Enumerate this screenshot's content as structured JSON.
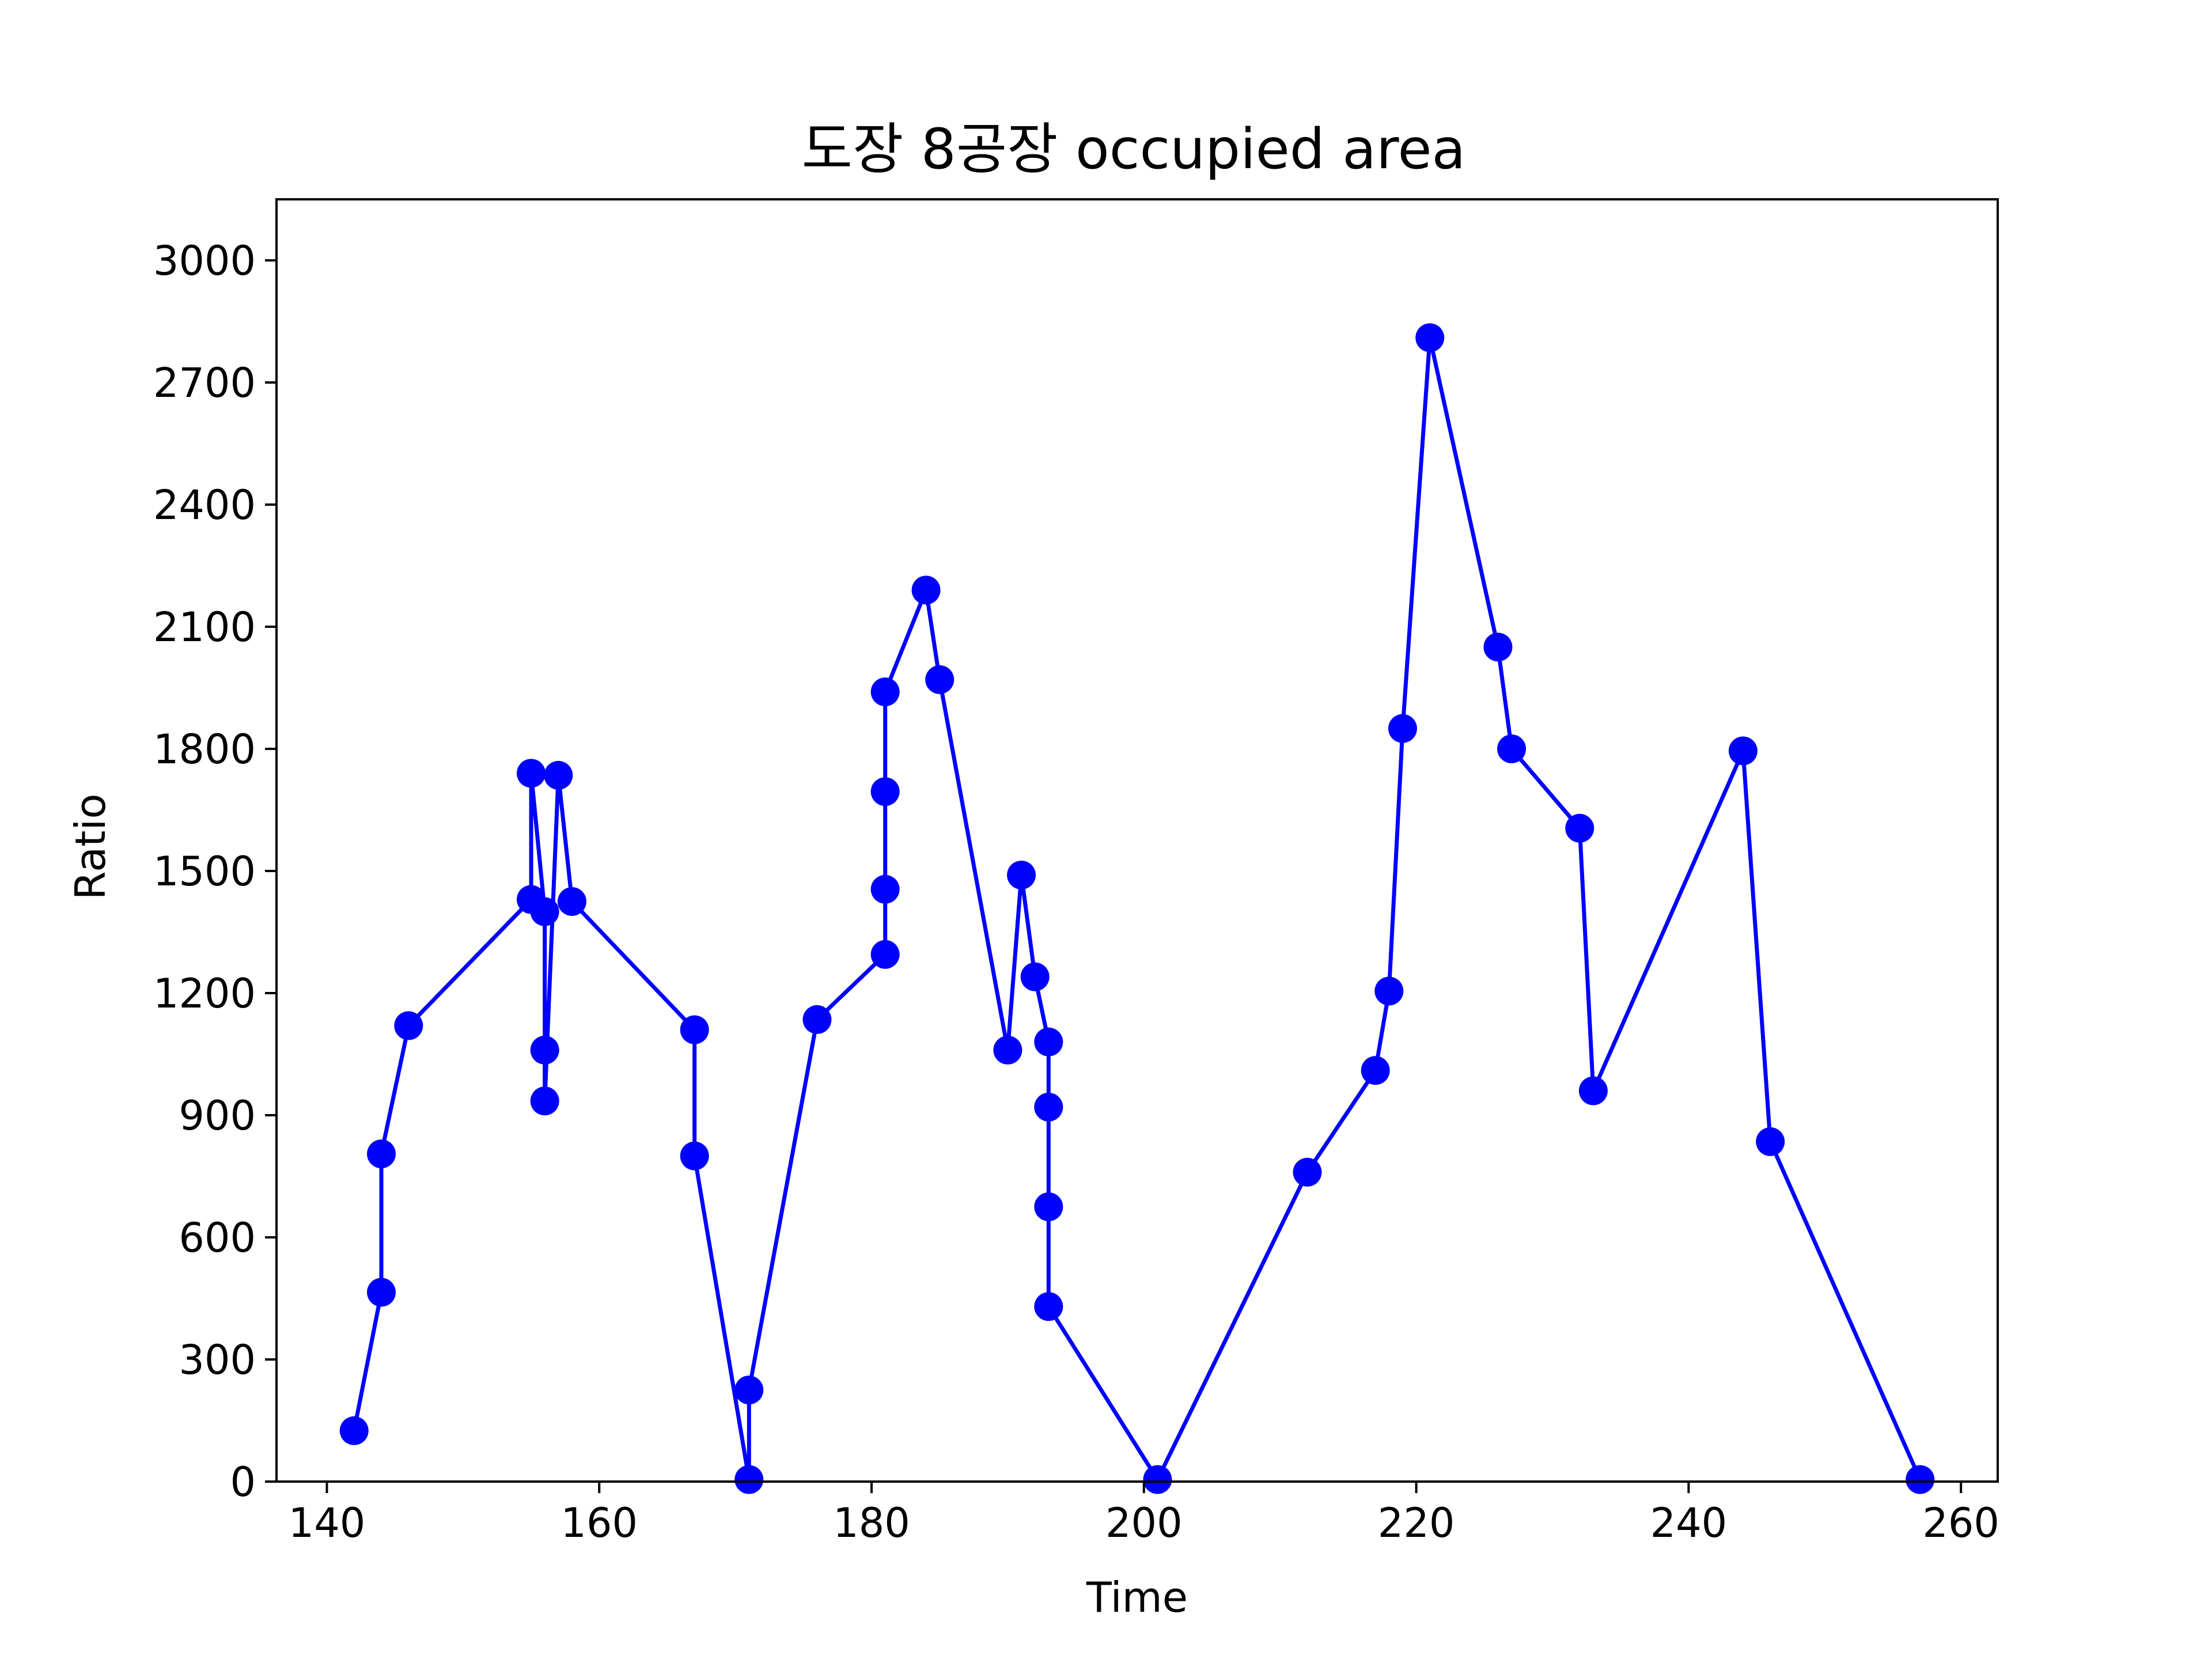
{
  "chart_data": {
    "type": "line",
    "title": "도장 8공장 occupied area",
    "xlabel": "Time",
    "ylabel": "Ratio",
    "xlim": [
      136.3,
      262.7
    ],
    "ylim": [
      0,
      3150
    ],
    "xticks": [
      140,
      160,
      180,
      200,
      220,
      240,
      260
    ],
    "yticks": [
      0,
      300,
      600,
      900,
      1200,
      1500,
      1800,
      2100,
      2400,
      2700,
      3000
    ],
    "grid": false,
    "colors": {
      "series": "#0000ff",
      "axes": "#000000",
      "background": "#ffffff"
    },
    "series": [
      {
        "marker": "circle",
        "x": [
          142,
          144,
          144,
          146,
          155,
          155,
          156,
          156,
          156,
          157,
          158,
          167,
          167,
          171,
          171,
          176,
          181,
          181,
          181,
          181,
          184,
          185,
          190,
          191,
          192,
          193,
          193,
          193,
          193,
          201,
          212,
          217,
          218,
          219,
          221,
          226,
          227,
          232,
          233,
          244,
          246,
          257
        ],
        "y": [
          125,
          465,
          805,
          1120,
          1430,
          1740,
          1400,
          1060,
          935,
          1735,
          1425,
          1110,
          800,
          5,
          225,
          1135,
          1295,
          1455,
          1695,
          1940,
          2190,
          1970,
          1060,
          1490,
          1240,
          1080,
          920,
          675,
          430,
          5,
          760,
          1010,
          1205,
          1850,
          2810,
          2050,
          1800,
          1605,
          960,
          1795,
          835,
          5
        ]
      }
    ]
  }
}
